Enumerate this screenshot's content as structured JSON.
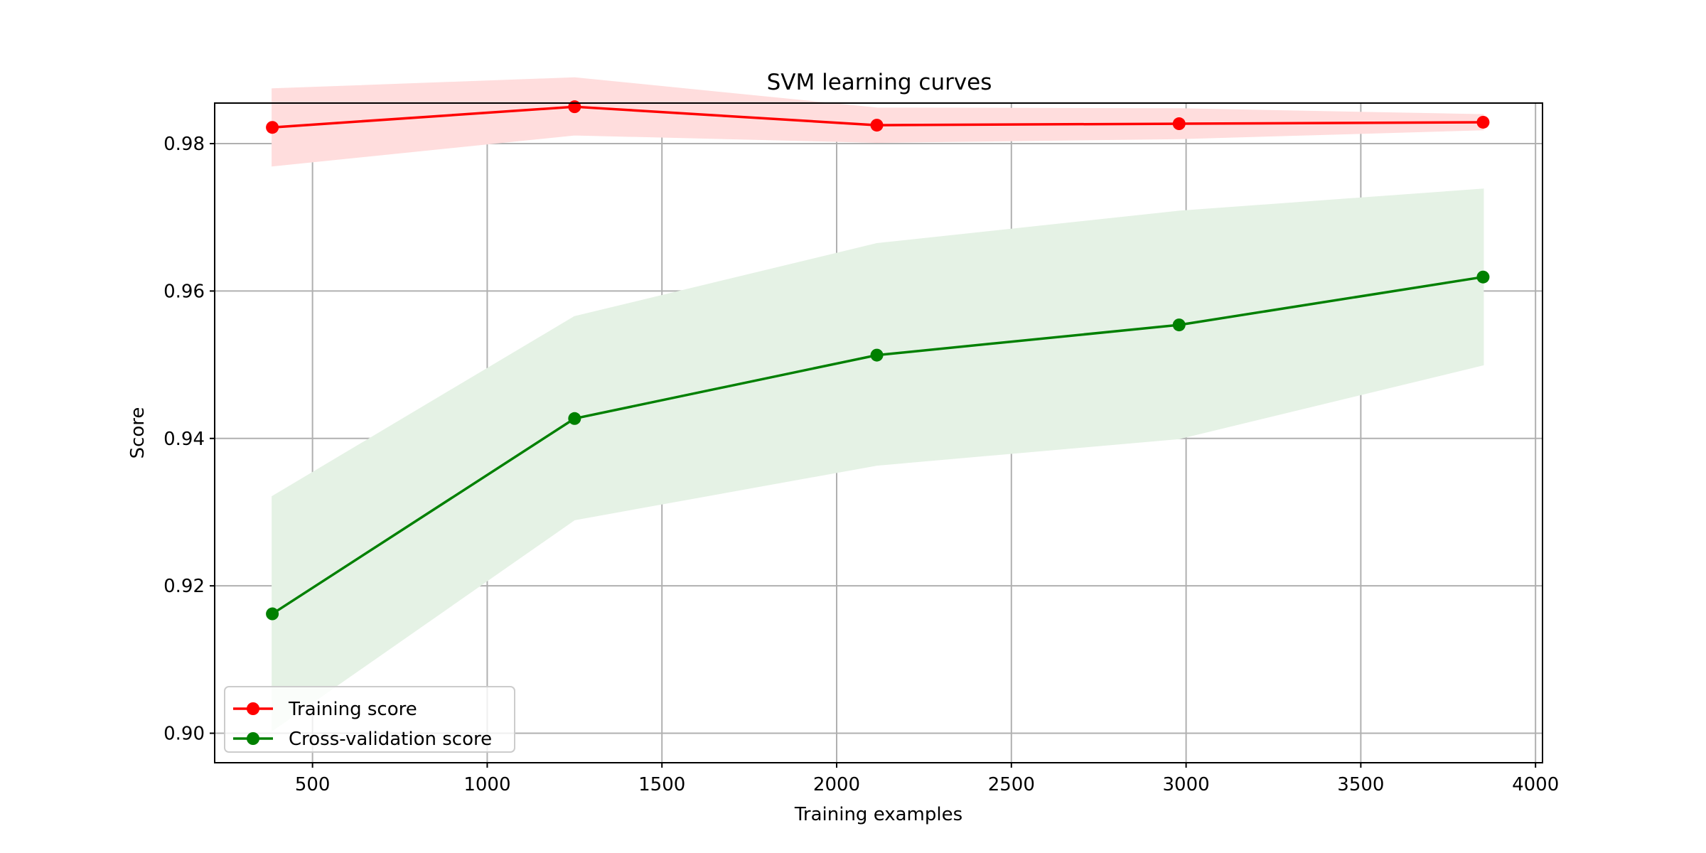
{
  "chart_data": {
    "type": "line",
    "title": "SVM learning curves",
    "xlabel": "Training examples",
    "ylabel": "Score",
    "xlim": [
      220,
      4020
    ],
    "ylim": [
      0.896,
      0.9855
    ],
    "xticks": [
      500,
      1000,
      1500,
      2000,
      2500,
      3000,
      3500,
      4000
    ],
    "yticks": [
      0.9,
      0.92,
      0.94,
      0.96,
      0.98
    ],
    "ytick_labels": [
      "0.90",
      "0.92",
      "0.94",
      "0.96",
      "0.98"
    ],
    "grid": true,
    "legend_position": "lower-left",
    "x": [
      385,
      1250,
      2115,
      2980,
      3850
    ],
    "series": [
      {
        "name": "Training score",
        "color": "#ff0000",
        "band_color": "#ffdddd",
        "marker": "circle",
        "values": [
          0.9822,
          0.985,
          0.9825,
          0.9827,
          0.9829
        ],
        "band_upper": [
          0.9874,
          0.9889,
          0.9848,
          0.9847,
          0.9839
        ],
        "band_lower": [
          0.977,
          0.9812,
          0.9802,
          0.9807,
          0.9819
        ]
      },
      {
        "name": "Cross-validation score",
        "color": "#008000",
        "band_color": "#e5f2e5",
        "marker": "circle",
        "values": [
          0.9162,
          0.9427,
          0.9513,
          0.9554,
          0.9619
        ],
        "band_upper": [
          0.9321,
          0.9565,
          0.9664,
          0.9708,
          0.9738
        ],
        "band_lower": [
          0.9004,
          0.929,
          0.9364,
          0.94,
          0.95
        ]
      }
    ]
  }
}
